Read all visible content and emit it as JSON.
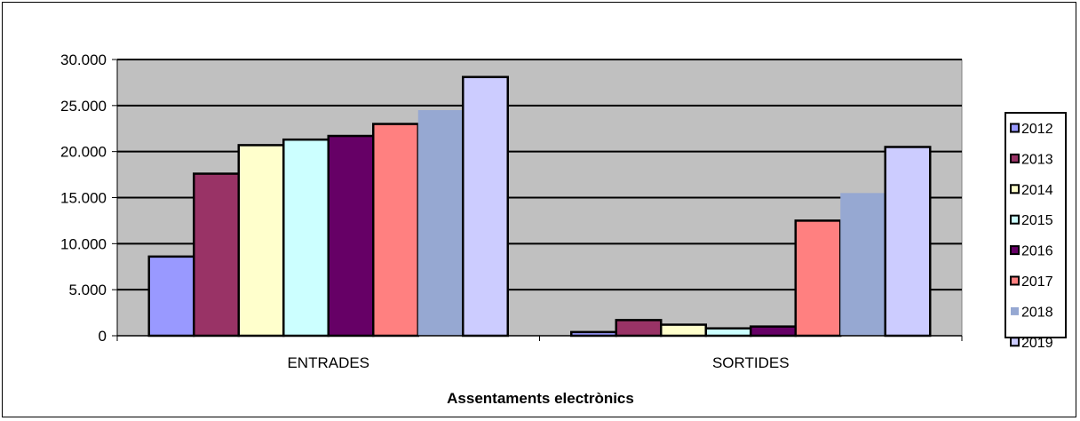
{
  "chart_data": {
    "type": "bar",
    "title": "",
    "xlabel": "Assentaments electrònics",
    "ylabel": "",
    "ylim": [
      0,
      30000
    ],
    "ytick_values": [
      0,
      5000,
      10000,
      15000,
      20000,
      25000,
      30000
    ],
    "ytick_labels": [
      "0",
      "5.000",
      "10.000",
      "15.000",
      "20.000",
      "25.000",
      "30.000"
    ],
    "categories": [
      "ENTRADES",
      "SORTIDES"
    ],
    "grid": true,
    "legend_position": "right",
    "plot_background": "#c0c0c0",
    "series": [
      {
        "name": "2012",
        "color": "#9999ff",
        "values": [
          8600,
          400
        ]
      },
      {
        "name": "2013",
        "color": "#993366",
        "values": [
          17600,
          1700
        ]
      },
      {
        "name": "2014",
        "color": "#ffffcc",
        "values": [
          20700,
          1200
        ]
      },
      {
        "name": "2015",
        "color": "#ccffff",
        "values": [
          21300,
          800
        ]
      },
      {
        "name": "2016",
        "color": "#660066",
        "values": [
          21700,
          1000
        ]
      },
      {
        "name": "2017",
        "color": "#ff8080",
        "values": [
          23000,
          12500
        ]
      },
      {
        "name": "2018",
        "color": "#96a8d2",
        "values": [
          24500,
          15500
        ],
        "no_outline": true
      },
      {
        "name": "2019",
        "color": "#ccccff",
        "values": [
          28100,
          20500
        ]
      }
    ]
  }
}
